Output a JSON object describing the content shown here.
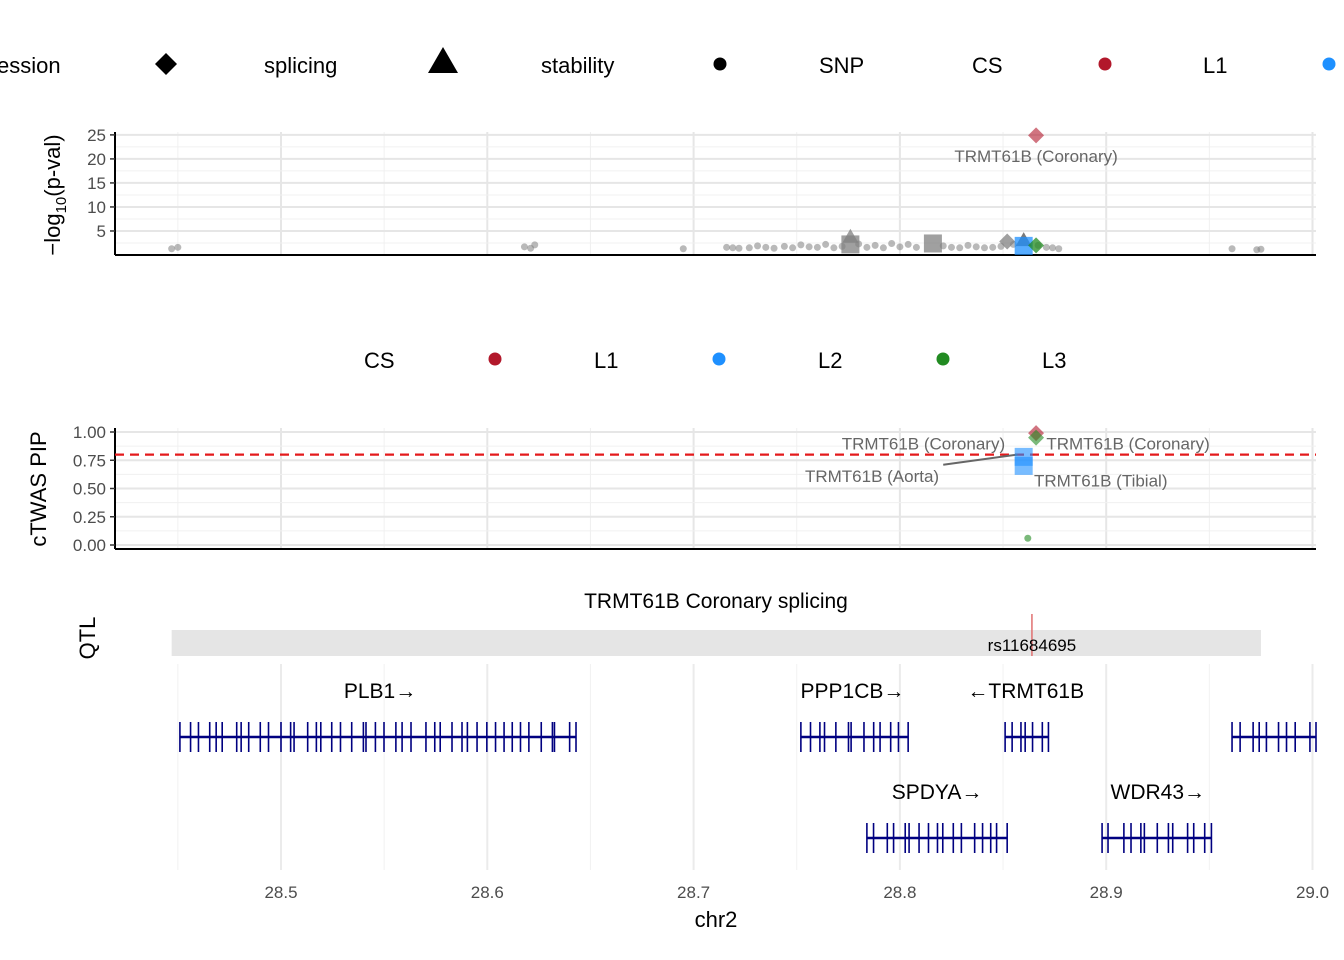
{
  "chart_data": [
    {
      "type": "scatter",
      "panel": "twas-pvalue",
      "ylabel": "−log10(p-val)",
      "ylabel_main": "−log",
      "ylabel_sub": "10",
      "ylabel_rest": "(p-val)",
      "xlim": [
        28.42,
        29.0
      ],
      "ylim": [
        0,
        26
      ],
      "yticks": [
        5,
        10,
        15,
        20,
        25
      ],
      "grid": true,
      "legend": {
        "placement": "top",
        "entries": [
          {
            "label": "ession",
            "shape": "circle-partial",
            "color": "#000000"
          },
          {
            "label": "splicing",
            "shape": "diamond",
            "color": "#000000"
          },
          {
            "label": "stability",
            "shape": "triangle",
            "color": "#000000"
          },
          {
            "label": "SNP",
            "shape": "circle-small",
            "color": "#000000"
          },
          {
            "label": "CS",
            "shape": "none",
            "color": "#000000"
          },
          {
            "label": "L1",
            "shape": "circle",
            "color": "#b2182b"
          },
          {
            "label": "",
            "shape": "circle",
            "color": "#1e90ff"
          }
        ]
      },
      "snp_points": [
        {
          "x": 28.447,
          "y": 1.3
        },
        {
          "x": 28.45,
          "y": 1.6
        },
        {
          "x": 28.618,
          "y": 1.7
        },
        {
          "x": 28.621,
          "y": 1.4
        },
        {
          "x": 28.623,
          "y": 2.1
        },
        {
          "x": 28.695,
          "y": 1.3
        },
        {
          "x": 28.716,
          "y": 1.6
        },
        {
          "x": 28.719,
          "y": 1.5
        },
        {
          "x": 28.722,
          "y": 1.4
        },
        {
          "x": 28.727,
          "y": 1.5
        },
        {
          "x": 28.731,
          "y": 1.9
        },
        {
          "x": 28.735,
          "y": 1.6
        },
        {
          "x": 28.739,
          "y": 1.4
        },
        {
          "x": 28.744,
          "y": 1.8
        },
        {
          "x": 28.748,
          "y": 1.5
        },
        {
          "x": 28.752,
          "y": 2.1
        },
        {
          "x": 28.756,
          "y": 1.7
        },
        {
          "x": 28.76,
          "y": 1.6
        },
        {
          "x": 28.764,
          "y": 2.2
        },
        {
          "x": 28.768,
          "y": 1.5
        },
        {
          "x": 28.772,
          "y": 1.8
        },
        {
          "x": 28.78,
          "y": 2.3
        },
        {
          "x": 28.784,
          "y": 1.6
        },
        {
          "x": 28.788,
          "y": 2.0
        },
        {
          "x": 28.792,
          "y": 1.5
        },
        {
          "x": 28.796,
          "y": 2.4
        },
        {
          "x": 28.8,
          "y": 1.7
        },
        {
          "x": 28.804,
          "y": 2.2
        },
        {
          "x": 28.808,
          "y": 1.6
        },
        {
          "x": 28.821,
          "y": 1.9
        },
        {
          "x": 28.825,
          "y": 1.6
        },
        {
          "x": 28.829,
          "y": 1.5
        },
        {
          "x": 28.833,
          "y": 2.0
        },
        {
          "x": 28.837,
          "y": 1.7
        },
        {
          "x": 28.841,
          "y": 1.5
        },
        {
          "x": 28.845,
          "y": 1.6
        },
        {
          "x": 28.849,
          "y": 1.8
        },
        {
          "x": 28.855,
          "y": 2.2
        },
        {
          "x": 28.867,
          "y": 2.0
        },
        {
          "x": 28.871,
          "y": 1.6
        },
        {
          "x": 28.874,
          "y": 1.5
        },
        {
          "x": 28.877,
          "y": 1.3
        },
        {
          "x": 28.961,
          "y": 1.3
        },
        {
          "x": 28.973,
          "y": 1.1
        },
        {
          "x": 28.975,
          "y": 1.2
        }
      ],
      "twas_points": [
        {
          "x": 28.776,
          "y": 3.8,
          "shape": "triangle",
          "color": "#808080"
        },
        {
          "x": 28.776,
          "y": 2.2,
          "shape": "square",
          "color": "#808080"
        },
        {
          "x": 28.816,
          "y": 2.4,
          "shape": "square",
          "color": "#808080"
        },
        {
          "x": 28.852,
          "y": 2.8,
          "shape": "diamond",
          "color": "#808080"
        },
        {
          "x": 28.86,
          "y": 3.1,
          "shape": "triangle",
          "color": "#4d4d4d"
        },
        {
          "x": 28.86,
          "y": 1.9,
          "shape": "square",
          "color": "#1e90ff"
        },
        {
          "x": 28.866,
          "y": 2.0,
          "shape": "diamond",
          "color": "#228b22"
        },
        {
          "x": 28.866,
          "y": 24.9,
          "shape": "diamond",
          "color": "#b2182b"
        }
      ],
      "annotations": [
        {
          "text": "TRMT61B (Coronary)",
          "x": 28.866,
          "y": 20.6
        }
      ]
    },
    {
      "type": "scatter",
      "panel": "ctwas-pip",
      "ylabel": "cTWAS PIP",
      "xlim": [
        28.42,
        29.0
      ],
      "ylim": [
        0,
        1.0
      ],
      "yticks": [
        "0.00",
        "0.25",
        "0.50",
        "0.75",
        "1.00"
      ],
      "threshold": {
        "y": 0.8,
        "color": "#e41a1c",
        "style": "dashed"
      },
      "grid": true,
      "legend": {
        "placement": "top",
        "entries": [
          {
            "label": "CS",
            "shape": "none",
            "color": "#000000"
          },
          {
            "label": "L1",
            "shape": "circle",
            "color": "#b2182b"
          },
          {
            "label": "L2",
            "shape": "circle",
            "color": "#1e90ff"
          },
          {
            "label": "L3",
            "shape": "circle",
            "color": "#228b22"
          }
        ]
      },
      "points": [
        {
          "x": 28.866,
          "y": 0.99,
          "shape": "diamond",
          "color": "#b2182b"
        },
        {
          "x": 28.866,
          "y": 0.95,
          "shape": "diamond",
          "color": "#228b22"
        },
        {
          "x": 28.86,
          "y": 0.78,
          "shape": "square",
          "color": "#1e90ff"
        },
        {
          "x": 28.86,
          "y": 0.7,
          "shape": "square",
          "color": "#1e90ff"
        },
        {
          "x": 28.862,
          "y": 0.06,
          "shape": "circle",
          "color": "#228b22"
        }
      ],
      "annotations": [
        {
          "text": "TRMT61B (Coronary)",
          "anchor": "end",
          "x": 28.851,
          "y": 0.9
        },
        {
          "text": "TRMT61B (Coronary)",
          "anchor": "start",
          "x": 28.871,
          "y": 0.9
        },
        {
          "text": "TRMT61B (Aorta)",
          "anchor": "end",
          "x": 28.819,
          "y": 0.61
        },
        {
          "text": "TRMT61B (Tibial)",
          "anchor": "start",
          "x": 28.865,
          "y": 0.57
        }
      ]
    },
    {
      "type": "track",
      "panel": "qtl",
      "title": "TRMT61B Coronary splicing",
      "ylabel": "QTL",
      "range": [
        28.447,
        28.975
      ],
      "snp": {
        "label": "rs11684695",
        "x": 28.864
      }
    },
    {
      "type": "gene-track",
      "panel": "genes",
      "xlabel": "chr2",
      "xticks": [
        "28.5",
        "28.6",
        "28.7",
        "28.8",
        "28.9",
        "29.0"
      ],
      "genes": [
        {
          "name": "PLB1→",
          "start": 28.451,
          "end": 28.643,
          "row": 1,
          "label_x": 28.548
        },
        {
          "name": "PPP1CB→",
          "start": 28.752,
          "end": 28.804,
          "row": 1,
          "label_x": 28.777
        },
        {
          "name": "←TRMT61B",
          "start": 28.851,
          "end": 28.872,
          "row": 1,
          "label_x": 28.861
        },
        {
          "name": "",
          "start": 28.961,
          "end": 29.005,
          "row": 1,
          "label_x": 28.98
        },
        {
          "name": "SPDYA→",
          "start": 28.784,
          "end": 28.852,
          "row": 2,
          "label_x": 28.818
        },
        {
          "name": "WDR43→",
          "start": 28.898,
          "end": 28.951,
          "row": 2,
          "label_x": 28.925
        }
      ]
    }
  ]
}
